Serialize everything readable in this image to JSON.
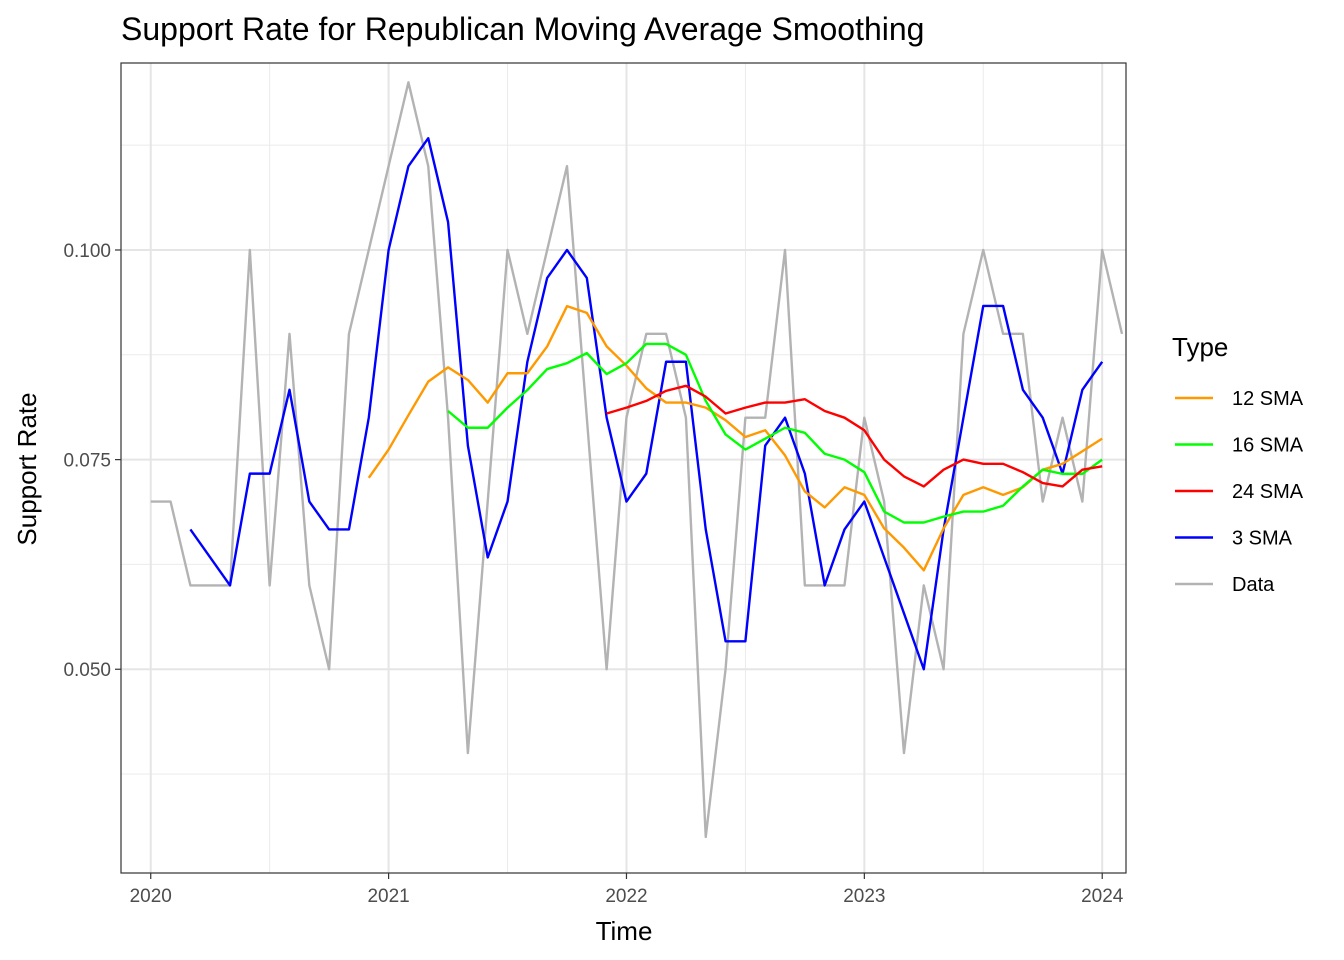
{
  "chart_data": {
    "type": "line",
    "title": "Support Rate for Republican Moving Average Smoothing",
    "xlabel": "Time",
    "ylabel": "Support Rate",
    "xlim": [
      2019.875,
      2024.1
    ],
    "ylim": [
      0.0257,
      0.1223
    ],
    "x_ticks": [
      {
        "value": 2020,
        "label": "2020"
      },
      {
        "value": 2021,
        "label": "2021"
      },
      {
        "value": 2022,
        "label": "2022"
      },
      {
        "value": 2023,
        "label": "2023"
      },
      {
        "value": 2024,
        "label": "2024"
      }
    ],
    "x_minor": [
      2020.5,
      2021.5,
      2022.5,
      2023.5
    ],
    "y_ticks": [
      {
        "value": 0.05,
        "label": "0.050"
      },
      {
        "value": 0.075,
        "label": "0.075"
      },
      {
        "value": 0.1,
        "label": "0.100"
      }
    ],
    "y_minor": [
      0.0375,
      0.0625,
      0.0875,
      0.1125
    ],
    "grid": true,
    "legend": {
      "title": "Type",
      "position": "right"
    },
    "series": [
      {
        "name": "Data",
        "color": "#b3b3b3",
        "start": 2020.0,
        "step": 0.08333,
        "values": [
          0.07,
          0.07,
          0.06,
          0.06,
          0.06,
          0.1,
          0.06,
          0.09,
          0.06,
          0.05,
          0.09,
          0.1,
          0.11,
          0.12,
          0.11,
          0.08,
          0.04,
          0.07,
          0.1,
          0.09,
          0.1,
          0.11,
          0.08,
          0.05,
          0.08,
          0.09,
          0.09,
          0.08,
          0.03,
          0.05,
          0.08,
          0.08,
          0.1,
          0.06,
          0.06,
          0.06,
          0.08,
          0.07,
          0.04,
          0.06,
          0.05,
          0.09,
          0.1,
          0.09,
          0.09,
          0.07,
          0.08,
          0.07,
          0.1,
          0.09
        ]
      },
      {
        "name": "3 SMA",
        "color": "#0000ff",
        "start": 2020.1667,
        "step": 0.08333,
        "values": [
          0.06667,
          0.06333,
          0.06,
          0.07333,
          0.07333,
          0.08333,
          0.07,
          0.06667,
          0.06667,
          0.08,
          0.1,
          0.11,
          0.11333,
          0.10333,
          0.07667,
          0.06333,
          0.07,
          0.08667,
          0.09667,
          0.1,
          0.09667,
          0.08,
          0.07,
          0.07333,
          0.08667,
          0.08667,
          0.06667,
          0.05333,
          0.05333,
          0.07667,
          0.08,
          0.07333,
          0.06,
          0.06667,
          0.07,
          0.06333,
          0.05667,
          0.05,
          0.06667,
          0.08,
          0.09333,
          0.09333,
          0.08333,
          0.08,
          0.07333,
          0.08333,
          0.08667
        ]
      },
      {
        "name": "12 SMA",
        "color": "#ff9900",
        "start": 2020.9167,
        "step": 0.08333,
        "values": [
          0.07283,
          0.0762,
          0.0803,
          0.0843,
          0.086,
          0.0845,
          0.0818,
          0.0853,
          0.0853,
          0.0885,
          0.0933,
          0.0925,
          0.0885,
          0.0862,
          0.0835,
          0.0818,
          0.0818,
          0.0812,
          0.0797,
          0.0777,
          0.0785,
          0.0755,
          0.0712,
          0.0693,
          0.0717,
          0.0708,
          0.0668,
          0.0645,
          0.0618,
          0.0668,
          0.0708,
          0.0717,
          0.0708,
          0.0717,
          0.0738,
          0.0745,
          0.076,
          0.0775
        ]
      },
      {
        "name": "16 SMA",
        "color": "#00ff00",
        "start": 2021.25,
        "step": 0.08333,
        "values": [
          0.0808,
          0.0788,
          0.0788,
          0.0812,
          0.0833,
          0.0858,
          0.0865,
          0.0877,
          0.0852,
          0.0865,
          0.0888,
          0.0888,
          0.0875,
          0.082,
          0.078,
          0.0762,
          0.0775,
          0.0788,
          0.0782,
          0.0757,
          0.075,
          0.0735,
          0.0688,
          0.0675,
          0.0675,
          0.0682,
          0.0688,
          0.0688,
          0.0695,
          0.0718,
          0.0738,
          0.0733,
          0.0733,
          0.075
        ]
      },
      {
        "name": "24 SMA",
        "color": "#ff0000",
        "start": 2021.9167,
        "step": 0.08333,
        "values": [
          0.0805,
          0.0812,
          0.082,
          0.0832,
          0.0838,
          0.0825,
          0.0805,
          0.0812,
          0.0818,
          0.0818,
          0.0822,
          0.0808,
          0.08,
          0.0785,
          0.075,
          0.073,
          0.0718,
          0.0738,
          0.075,
          0.0745,
          0.0745,
          0.0735,
          0.0722,
          0.0718,
          0.0738,
          0.0742
        ]
      }
    ],
    "legend_order": [
      "12 SMA",
      "16 SMA",
      "24 SMA",
      "3 SMA",
      "Data"
    ]
  }
}
